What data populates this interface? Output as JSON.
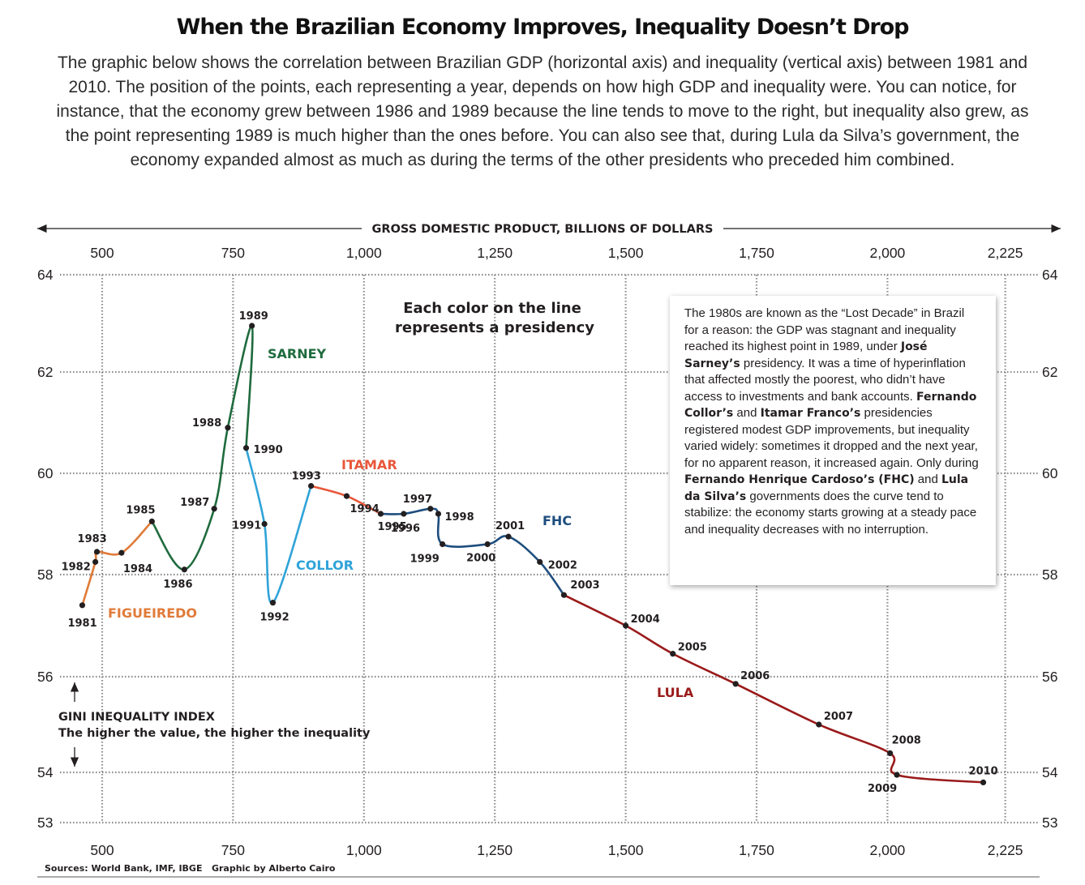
{
  "header": {
    "title": "When the Brazilian Economy Improves, Inequality Doesn’t Drop",
    "subtitle": "The graphic below shows the correlation between Brazilian GDP (horizontal axis) and inequality (vertical axis) between 1981 and 2010. The position of the points, each representing a year, depends on how high GDP and inequality were. You can notice, for instance, that the economy grew between 1986 and 1989 because the line tends to move to the right, but inequality also grew, as the point representing 1989 is much higher than the ones before. You can also see that, during Lula da Silva’s government, the economy expanded almost as much as during the terms of the other presidents who preceded him combined."
  },
  "annotation": {
    "color_note_line1": "Each color on the line",
    "color_note_line2": "represents a presidency"
  },
  "info_box": {
    "segments": [
      {
        "text": "The 1980s are known as the “Lost Decade” in Brazil for a reason: the GDP was stagnant and inequality reached its highest point in 1989, under ",
        "bold": false
      },
      {
        "text": "José Sarney’s",
        "bold": true
      },
      {
        "text": " presidency. It was a time of hyperinflation that affected mostly the poorest, who didn’t have access to investments and bank accounts. ",
        "bold": false
      },
      {
        "text": "Fernando Collor’s",
        "bold": true
      },
      {
        "text": " and ",
        "bold": false
      },
      {
        "text": "Itamar Franco’s",
        "bold": true
      },
      {
        "text": " presidencies registered modest GDP improvements, but inequality varied widely: sometimes it dropped and the next year, for no apparent reason, it increased again. Only during ",
        "bold": false
      },
      {
        "text": "Fernando Henrique Cardoso’s (FHC)",
        "bold": true
      },
      {
        "text": " and ",
        "bold": false
      },
      {
        "text": "Lula da Silva’s",
        "bold": true
      },
      {
        "text": " governments does the curve tend to stabilize: the economy starts growing at a steady pace and inequality decreases with no interruption.",
        "bold": false
      }
    ]
  },
  "footer": {
    "sources": "Sources: World Bank, IMF, IBGE   Graphic by Alberto Cairo"
  },
  "chart_data": {
    "type": "line",
    "xlabel": "GROSS DOMESTIC PRODUCT, BILLIONS OF DOLLARS",
    "ylabel_line1": "GINI INEQUALITY INDEX",
    "ylabel_line2": "The higher the value, the higher the inequality",
    "xlim": [
      430,
      2240
    ],
    "ylim": [
      53,
      64
    ],
    "x_ticks": [
      500,
      750,
      1000,
      1250,
      1500,
      1750,
      2000,
      2225
    ],
    "x_tick_labels": [
      "500",
      "750",
      "1,000",
      "1,250",
      "1,500",
      "1,750",
      "2,000",
      "2,225"
    ],
    "y_ticks": [
      53,
      54,
      56,
      58,
      60,
      62,
      64
    ],
    "y_tick_labels": [
      "53",
      "54",
      "56",
      "58",
      "60",
      "62",
      "64"
    ],
    "grid": true,
    "points": [
      {
        "year": "1981",
        "x": 462,
        "y": 57.4
      },
      {
        "year": "1982",
        "x": 487,
        "y": 58.25
      },
      {
        "year": "1983",
        "x": 490,
        "y": 58.45
      },
      {
        "year": "1984",
        "x": 537,
        "y": 58.43
      },
      {
        "year": "1985",
        "x": 595,
        "y": 59.05
      },
      {
        "year": "1986",
        "x": 657,
        "y": 58.1
      },
      {
        "year": "1987",
        "x": 714,
        "y": 59.3
      },
      {
        "year": "1988",
        "x": 740,
        "y": 60.9
      },
      {
        "year": "1989",
        "x": 786,
        "y": 62.95
      },
      {
        "year": "1990",
        "x": 775,
        "y": 60.5
      },
      {
        "year": "1991",
        "x": 810,
        "y": 59.0
      },
      {
        "year": "1992",
        "x": 826,
        "y": 57.45
      },
      {
        "year": "1993",
        "x": 899,
        "y": 59.75
      },
      {
        "year": "1994",
        "x": 967,
        "y": 59.55
      },
      {
        "year": "1995",
        "x": 1032,
        "y": 59.2
      },
      {
        "year": "1996",
        "x": 1076,
        "y": 59.2
      },
      {
        "year": "1997",
        "x": 1127,
        "y": 59.3
      },
      {
        "year": "1998",
        "x": 1142,
        "y": 59.2
      },
      {
        "year": "1999",
        "x": 1150,
        "y": 58.6
      },
      {
        "year": "2000",
        "x": 1236,
        "y": 58.6
      },
      {
        "year": "2001",
        "x": 1276,
        "y": 58.75
      },
      {
        "year": "2002",
        "x": 1336,
        "y": 58.25
      },
      {
        "year": "2003",
        "x": 1382,
        "y": 57.6
      },
      {
        "year": "2004",
        "x": 1500,
        "y": 57.0
      },
      {
        "year": "2005",
        "x": 1590,
        "y": 56.45
      },
      {
        "year": "2006",
        "x": 1710,
        "y": 55.85
      },
      {
        "year": "2007",
        "x": 1869,
        "y": 55.0
      },
      {
        "year": "2008",
        "x": 2005,
        "y": 54.4
      },
      {
        "year": "2009",
        "x": 2018,
        "y": 53.95
      },
      {
        "year": "2010",
        "x": 2183,
        "y": 53.8
      }
    ],
    "presidencies": [
      {
        "name": "FIGUEIREDO",
        "color": "#e07b39",
        "from": "1981",
        "to": "1985"
      },
      {
        "name": "SARNEY",
        "color": "#1f6b3e",
        "from": "1985",
        "to": "1990"
      },
      {
        "name": "COLLOR",
        "color": "#2fa3d9",
        "from": "1990",
        "to": "1993"
      },
      {
        "name": "ITAMAR",
        "color": "#e8573a",
        "from": "1993",
        "to": "1995"
      },
      {
        "name": "FHC",
        "color": "#1d4e7e",
        "from": "1995",
        "to": "2003"
      },
      {
        "name": "LULA",
        "color": "#9a1a1a",
        "from": "2003",
        "to": "2010"
      }
    ]
  }
}
